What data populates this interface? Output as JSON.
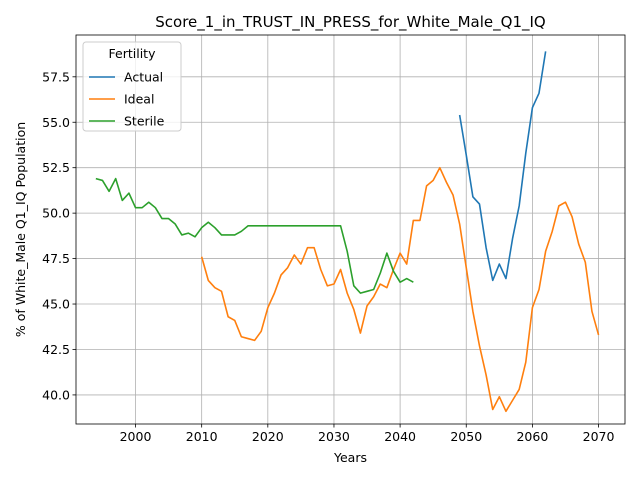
{
  "chart_data": {
    "type": "line",
    "title": "Score_1_in_TRUST_IN_PRESS_for_White_Male_Q1_IQ",
    "xlabel": "Years",
    "ylabel": "% of White_Male Q1_IQ Population",
    "xlim": [
      1991,
      2074
    ],
    "ylim": [
      38.4,
      59.8
    ],
    "xticks": [
      2000,
      2010,
      2020,
      2030,
      2040,
      2050,
      2060,
      2070
    ],
    "xtick_labels": [
      "2000",
      "2010",
      "2020",
      "2030",
      "2040",
      "2050",
      "2060",
      "2070"
    ],
    "yticks": [
      40.0,
      42.5,
      45.0,
      47.5,
      50.0,
      52.5,
      55.0,
      57.5
    ],
    "ytick_labels": [
      "40.0",
      "42.5",
      "45.0",
      "47.5",
      "50.0",
      "52.5",
      "55.0",
      "57.5"
    ],
    "grid": true,
    "legend": {
      "title": "Fertility",
      "placement": "upper-left"
    },
    "series": [
      {
        "name": "Actual",
        "color": "#1f77b4",
        "x": [
          2049,
          2050,
          2051,
          2052,
          2053,
          2054,
          2055,
          2056,
          2057,
          2058,
          2059,
          2060,
          2061,
          2062
        ],
        "y": [
          55.4,
          53.2,
          50.9,
          50.5,
          48.1,
          46.3,
          47.2,
          46.4,
          48.6,
          50.4,
          53.3,
          55.8,
          56.6,
          58.9
        ]
      },
      {
        "name": "Ideal",
        "color": "#ff7f0e",
        "x": [
          2010,
          2011,
          2012,
          2013,
          2014,
          2015,
          2016,
          2017,
          2018,
          2019,
          2020,
          2021,
          2022,
          2023,
          2024,
          2025,
          2026,
          2027,
          2028,
          2029,
          2030,
          2031,
          2032,
          2033,
          2034,
          2035,
          2036,
          2037,
          2038,
          2039,
          2040,
          2041,
          2042,
          2043,
          2044,
          2045,
          2046,
          2047,
          2048,
          2049,
          2050,
          2051,
          2052,
          2053,
          2054,
          2055,
          2056,
          2057,
          2058,
          2059,
          2060,
          2061,
          2062,
          2063,
          2064,
          2065,
          2066,
          2067,
          2068,
          2069,
          2070
        ],
        "y": [
          47.6,
          46.3,
          45.9,
          45.7,
          44.3,
          44.1,
          43.2,
          43.1,
          43.0,
          43.5,
          44.8,
          45.6,
          46.6,
          47.0,
          47.7,
          47.2,
          48.1,
          48.1,
          46.9,
          46.0,
          46.1,
          46.9,
          45.6,
          44.7,
          43.4,
          44.9,
          45.4,
          46.1,
          45.9,
          46.9,
          47.8,
          47.2,
          49.6,
          49.6,
          51.5,
          51.8,
          52.5,
          51.7,
          51.0,
          49.4,
          47.0,
          44.6,
          42.7,
          41.1,
          39.2,
          39.9,
          39.1,
          39.7,
          40.3,
          41.8,
          44.8,
          45.8,
          47.9,
          49.0,
          50.4,
          50.6,
          49.8,
          48.3,
          47.3,
          44.6,
          43.3
        ]
      },
      {
        "name": "Sterile",
        "color": "#2ca02c",
        "x": [
          1994,
          1995,
          1996,
          1997,
          1998,
          1999,
          2000,
          2001,
          2002,
          2003,
          2004,
          2005,
          2006,
          2007,
          2008,
          2009,
          2010,
          2011,
          2012,
          2013,
          2014,
          2015,
          2016,
          2017,
          2018,
          2019,
          2020,
          2021,
          2022,
          2023,
          2024,
          2025,
          2026,
          2027,
          2028,
          2029,
          2030,
          2031,
          2032,
          2033,
          2034,
          2035,
          2036,
          2037,
          2038,
          2039,
          2040,
          2041,
          2042
        ],
        "y": [
          51.9,
          51.8,
          51.2,
          51.9,
          50.7,
          51.1,
          50.3,
          50.3,
          50.6,
          50.3,
          49.7,
          49.7,
          49.4,
          48.8,
          48.9,
          48.7,
          49.2,
          49.5,
          49.2,
          48.8,
          48.8,
          48.8,
          49.0,
          49.3,
          49.3,
          49.3,
          49.3,
          49.3,
          49.3,
          49.3,
          49.3,
          49.3,
          49.3,
          49.3,
          49.3,
          49.3,
          49.3,
          49.3,
          47.9,
          46.0,
          45.6,
          45.7,
          45.8,
          46.7,
          47.8,
          46.8,
          46.2,
          46.4,
          46.2
        ]
      }
    ]
  }
}
